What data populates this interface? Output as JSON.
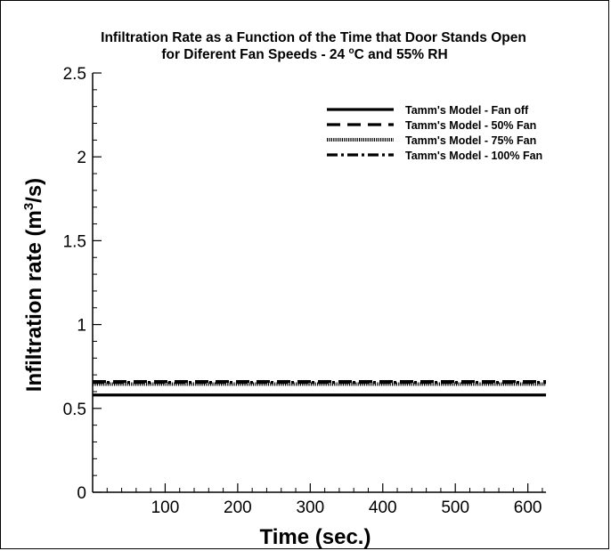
{
  "chart_data": {
    "type": "line",
    "title_line1": "Infiltration Rate as a Function of the Time that Door Stands Open",
    "title_line2_pre": "for Diferent Fan Speeds - 24 ",
    "title_line2_sup": "o",
    "title_line2_post": "C and 55% RH",
    "xlabel": "Time (sec.)",
    "ylabel_pre": "Infiltration rate (m",
    "ylabel_sup": "3",
    "ylabel_post": "/s)",
    "xlim": [
      0,
      625
    ],
    "ylim": [
      0,
      2.5
    ],
    "x_ticks": [
      100,
      200,
      300,
      400,
      500,
      600
    ],
    "y_ticks": [
      0,
      0.5,
      1,
      1.5,
      2,
      2.5
    ],
    "y_tick_labels": [
      "0",
      "0.5",
      "1",
      "1.5",
      "2",
      "2.5"
    ],
    "grid": false,
    "legend_position": "top-right",
    "series": [
      {
        "name": "Tamm's Model - Fan off",
        "style": "solid",
        "x": [
          0,
          625
        ],
        "y": [
          0.58,
          0.58
        ]
      },
      {
        "name": "Tamm's Model - 50% Fan",
        "style": "dashed",
        "x": [
          0,
          625
        ],
        "y": [
          0.66,
          0.66
        ]
      },
      {
        "name": "Tamm's Model - 75% Fan",
        "style": "dotted",
        "x": [
          0,
          625
        ],
        "y": [
          0.645,
          0.645
        ]
      },
      {
        "name": "Tamm's Model - 100% Fan",
        "style": "dashdot",
        "x": [
          0,
          625
        ],
        "y": [
          0.655,
          0.655
        ]
      }
    ]
  }
}
